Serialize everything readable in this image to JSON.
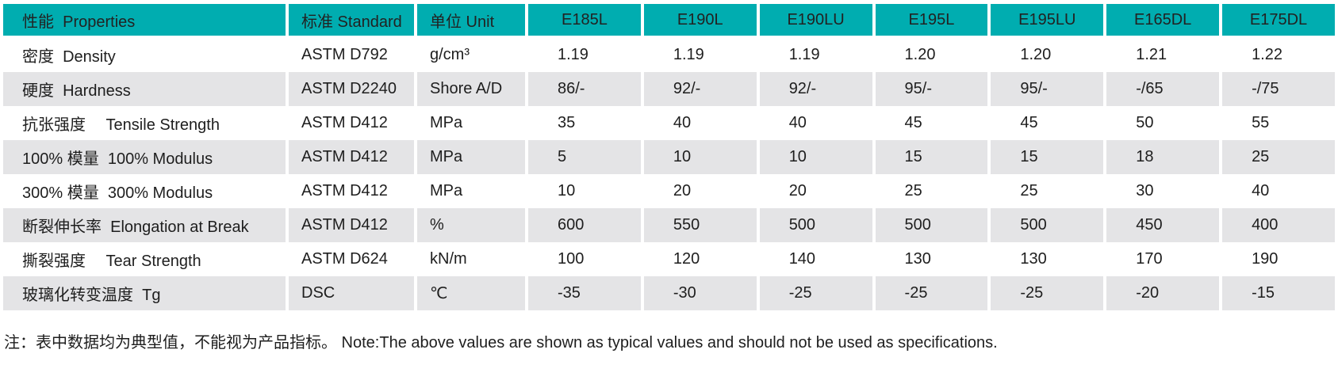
{
  "table": {
    "headers": [
      "性能  Properties",
      "标准 Standard",
      "单位 Unit",
      "E185L",
      "E190L",
      "E190LU",
      "E195L",
      "E195LU",
      "E165DL",
      "E175DL"
    ],
    "rows": [
      {
        "property": "密度  Density",
        "standard": "ASTM D792",
        "unit": "g/cm³",
        "values": [
          "1.19",
          "1.19",
          "1.19",
          "1.20",
          "1.20",
          "1.21",
          "1.22"
        ]
      },
      {
        "property": "硬度  Hardness",
        "standard": "ASTM D2240",
        "unit": "Shore A/D",
        "values": [
          "86/-",
          "92/-",
          "92/-",
          "95/-",
          "95/-",
          "-/65",
          "-/75"
        ]
      },
      {
        "property": "抗张强度　 Tensile Strength",
        "standard": "ASTM D412",
        "unit": "MPa",
        "values": [
          "35",
          "40",
          "40",
          "45",
          "45",
          "50",
          "55"
        ]
      },
      {
        "property": "100% 模量  100% Modulus",
        "standard": "ASTM D412",
        "unit": "MPa",
        "values": [
          "5",
          "10",
          "10",
          "15",
          "15",
          "18",
          "25"
        ]
      },
      {
        "property": "300% 模量  300% Modulus",
        "standard": "ASTM D412",
        "unit": "MPa",
        "values": [
          "10",
          "20",
          "20",
          "25",
          "25",
          "30",
          "40"
        ]
      },
      {
        "property": "断裂伸长率  Elongation at Break",
        "standard": "ASTM D412",
        "unit": "%",
        "values": [
          "600",
          "550",
          "500",
          "500",
          "500",
          "450",
          "400"
        ]
      },
      {
        "property": "撕裂强度　 Tear Strength",
        "standard": "ASTM D624",
        "unit": "kN/m",
        "values": [
          "100",
          "120",
          "140",
          "130",
          "130",
          "170",
          "190"
        ]
      },
      {
        "property": "玻璃化转变温度  Tg",
        "standard": "DSC",
        "unit": "℃",
        "values": [
          "-35",
          "-30",
          "-25",
          "-25",
          "-25",
          "-20",
          "-15"
        ]
      }
    ]
  },
  "note": "注：表中数据均为典型值，不能视为产品指标。 Note:The above values are shown as typical values and should not be used as specifications.",
  "colors": {
    "header_bg": "#00ADB0",
    "row_alt_bg": "#E4E4E6",
    "text": "#1E1E1E"
  }
}
